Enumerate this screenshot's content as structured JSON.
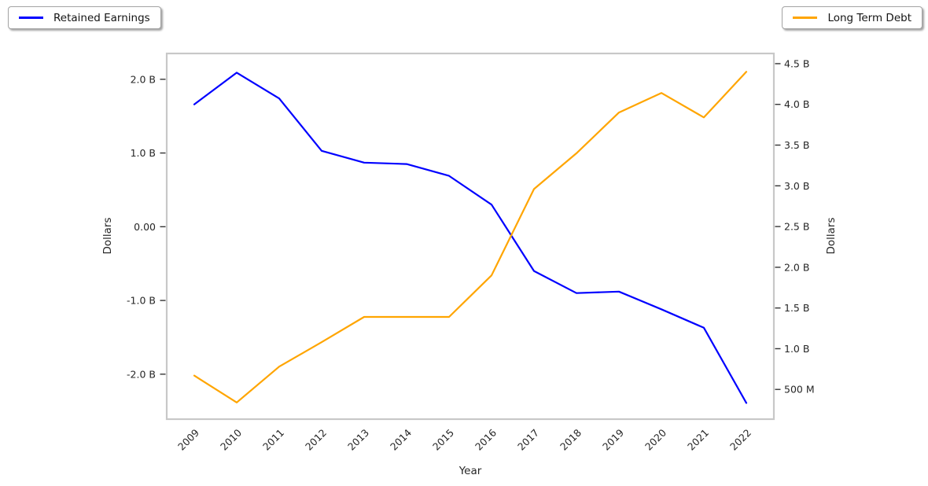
{
  "chart_data": {
    "type": "line",
    "title": "",
    "xlabel": "Year",
    "ylabel_left": "Dollars",
    "ylabel_right": "Dollars",
    "grid": false,
    "x": [
      "2009",
      "2010",
      "2011",
      "2012",
      "2013",
      "2014",
      "2015",
      "2016",
      "2017",
      "2018",
      "2019",
      "2020",
      "2021",
      "2022"
    ],
    "series": [
      {
        "name": "Retained Earnings",
        "axis": "left",
        "color": "#0000ff",
        "unit": "billions of dollars",
        "values": [
          1.66,
          2.09,
          1.74,
          1.03,
          0.87,
          0.85,
          0.69,
          0.3,
          -0.6,
          -0.9,
          -0.88,
          -1.12,
          -1.37,
          -2.39
        ]
      },
      {
        "name": "Long Term Debt",
        "axis": "right",
        "color": "#ffa500",
        "unit": "billions of dollars",
        "values": [
          0.67,
          0.34,
          0.78,
          1.08,
          1.39,
          1.39,
          1.39,
          1.9,
          2.96,
          3.4,
          3.9,
          4.14,
          3.84,
          4.4
        ]
      }
    ],
    "left_axis": {
      "min": -2.61,
      "max": 2.35,
      "ticks": [
        {
          "label": "2.0 B",
          "value": 2.0
        },
        {
          "label": "1.0 B",
          "value": 1.0
        },
        {
          "label": "0.00",
          "value": 0.0
        },
        {
          "label": "-1.0 B",
          "value": -1.0
        },
        {
          "label": "-2.0 B",
          "value": -2.0
        }
      ]
    },
    "right_axis": {
      "min": 0.135,
      "max": 4.625,
      "ticks": [
        {
          "label": "4.5 B",
          "value": 4.5
        },
        {
          "label": "4.0 B",
          "value": 4.0
        },
        {
          "label": "3.5 B",
          "value": 3.5
        },
        {
          "label": "3.0 B",
          "value": 3.0
        },
        {
          "label": "2.5 B",
          "value": 2.5
        },
        {
          "label": "2.0 B",
          "value": 2.0
        },
        {
          "label": "1.5 B",
          "value": 1.5
        },
        {
          "label": "1.0 B",
          "value": 1.0
        },
        {
          "label": "500 M",
          "value": 0.5
        }
      ]
    },
    "legend": [
      {
        "label": "Retained Earnings",
        "color": "#0000ff",
        "position": "top-left"
      },
      {
        "label": "Long Term Debt",
        "color": "#ffa500",
        "position": "top-right"
      }
    ]
  },
  "style_colors": {
    "blue_series": "#0000ff",
    "orange_series": "#ffa500",
    "plot_border": "#c8c8c8",
    "tick_mark": "#333333",
    "text": "#262626"
  }
}
